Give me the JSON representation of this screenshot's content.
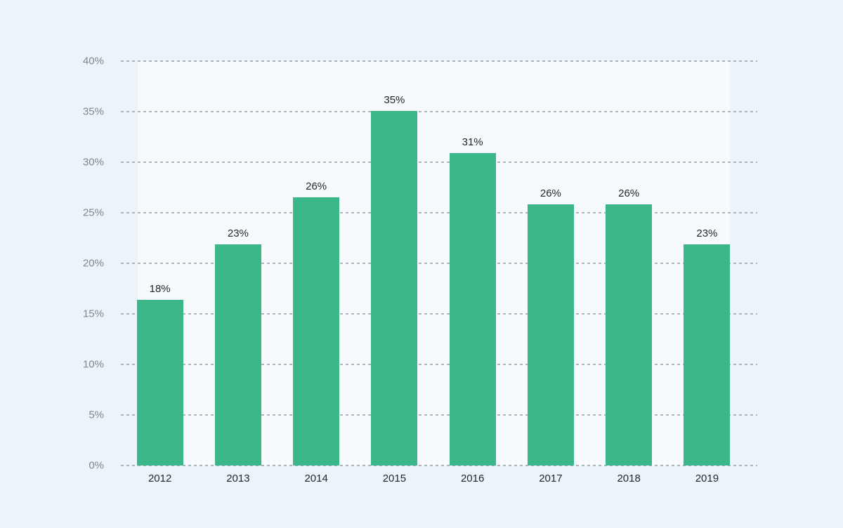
{
  "page": {
    "background": "#ecf4f9"
  },
  "chart_data": {
    "type": "bar",
    "title": "",
    "xlabel": "",
    "ylabel": "",
    "categories": [
      "2012",
      "2013",
      "2014",
      "2015",
      "2016",
      "2017",
      "2018",
      "2019"
    ],
    "values": [
      18,
      23,
      26,
      35,
      31,
      26,
      26,
      23
    ],
    "value_labels": [
      "18%",
      "23%",
      "26%",
      "35%",
      "31%",
      "26%",
      "26%",
      "23%"
    ],
    "bar_rendered_pct": [
      16.4,
      21.9,
      26.5,
      35.1,
      30.9,
      25.8,
      25.8,
      21.9
    ],
    "ylim": [
      0,
      40
    ],
    "yticks": [
      {
        "value": 0,
        "label": "0%"
      },
      {
        "value": 5,
        "label": "5%"
      },
      {
        "value": 10,
        "label": "10%"
      },
      {
        "value": 15,
        "label": "15%"
      },
      {
        "value": 20,
        "label": "20%"
      },
      {
        "value": 25,
        "label": "25%"
      },
      {
        "value": 30,
        "label": "30%"
      },
      {
        "value": 35,
        "label": "35%"
      },
      {
        "value": 40,
        "label": "40%"
      }
    ],
    "grid": "horizontal-dashed",
    "legend_position": "none",
    "colors": {
      "bar": "#3bb78a",
      "background": "#ecf4f9",
      "plot_band": "#f6fafc",
      "gridline": "#9fa9b4",
      "tick_label": "#7d8894",
      "value_label": "#1e252e",
      "category_label": "#1e252e"
    }
  }
}
